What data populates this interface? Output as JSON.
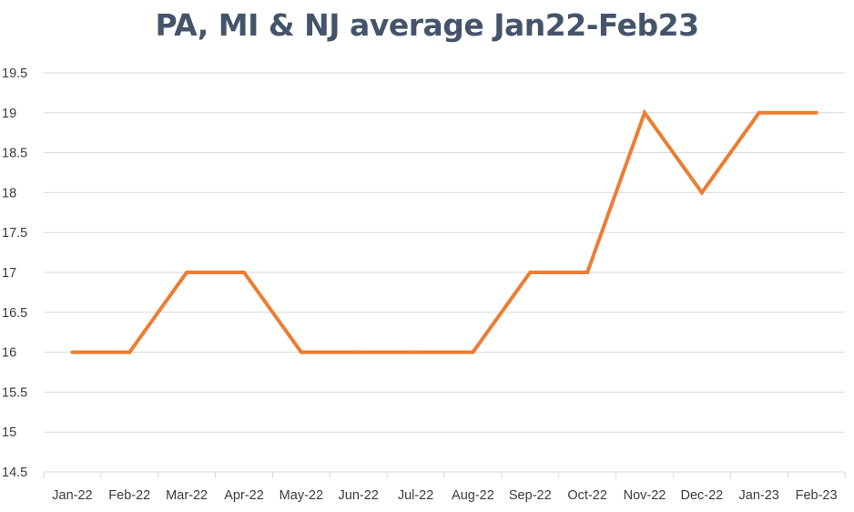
{
  "chart_data": {
    "type": "line",
    "title": "PA, MI & NJ average Jan22-Feb23",
    "xlabel": "",
    "ylabel": "",
    "categories": [
      "Jan-22",
      "Feb-22",
      "Mar-22",
      "Apr-22",
      "May-22",
      "Jun-22",
      "Jul-22",
      "Aug-22",
      "Sep-22",
      "Oct-22",
      "Nov-22",
      "Dec-22",
      "Jan-23",
      "Feb-23"
    ],
    "series": [
      {
        "values": [
          16,
          16,
          17,
          17,
          16,
          16,
          16,
          16,
          17,
          17,
          19,
          18,
          19,
          19
        ],
        "color": "#ed7d31"
      }
    ],
    "ylim": [
      14.5,
      19.5
    ],
    "yticks": [
      "14.5",
      "15",
      "15.5",
      "16",
      "16.5",
      "17",
      "17.5",
      "18",
      "18.5",
      "19",
      "19.5"
    ],
    "grid": true,
    "legend": "none"
  }
}
